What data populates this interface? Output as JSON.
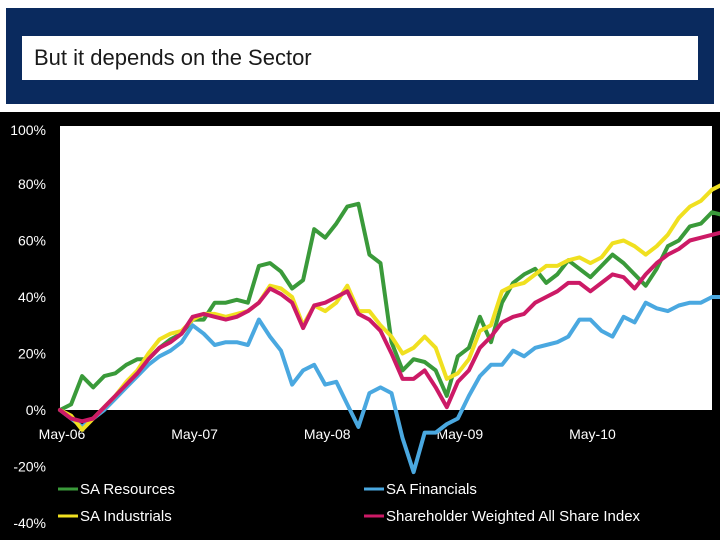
{
  "slide": {
    "title": "But it depends on the Sector"
  },
  "chart_data": {
    "type": "line",
    "title": "",
    "xlabel": "",
    "ylabel": "",
    "x_tick_labels": [
      "May-06",
      "May-07",
      "May-08",
      "May-09",
      "May-10"
    ],
    "x_tick_positions": [
      0,
      12,
      24,
      36,
      48
    ],
    "y_ticks": [
      100,
      80,
      60,
      40,
      20,
      0,
      -20,
      -40
    ],
    "y_tick_labels": [
      "100%",
      "80%",
      "60%",
      "40%",
      "20%",
      "0%",
      "-20%",
      "-40%"
    ],
    "ylim": [
      -40,
      100
    ],
    "x_range": [
      0,
      59
    ],
    "grid": false,
    "legend_position": "bottom",
    "background": "#000000",
    "plot_background": "#ffffff",
    "series": [
      {
        "name": "SA Resources",
        "color": "#3a9a3a",
        "values": [
          0,
          2,
          12,
          8,
          12,
          13,
          16,
          18,
          18,
          22,
          25,
          27,
          32,
          32,
          38,
          38,
          39,
          38,
          51,
          52,
          49,
          43,
          46,
          64,
          61,
          66,
          72,
          73,
          55,
          52,
          24,
          14,
          18,
          17,
          14,
          5,
          19,
          22,
          33,
          24,
          38,
          45,
          48,
          50,
          45,
          48,
          53,
          50,
          47,
          51,
          55,
          52,
          48,
          44,
          50,
          58,
          60,
          65,
          66,
          70,
          69
        ]
      },
      {
        "name": "SA Financials",
        "color": "#4aa8e0",
        "values": [
          0,
          -3,
          -6,
          -3,
          0,
          4,
          8,
          12,
          16,
          19,
          21,
          24,
          30,
          27,
          23,
          24,
          24,
          23,
          32,
          26,
          21,
          9,
          14,
          16,
          9,
          10,
          2,
          -6,
          6,
          8,
          6,
          -10,
          -22,
          -8,
          -8,
          -5,
          -3,
          5,
          12,
          16,
          16,
          21,
          19,
          22,
          23,
          24,
          26,
          32,
          32,
          28,
          26,
          33,
          31,
          38,
          36,
          35,
          37,
          38,
          38,
          40,
          40
        ]
      },
      {
        "name": "SA Industrials",
        "color": "#f0e020",
        "values": [
          0,
          -2,
          -7,
          -3,
          1,
          5,
          10,
          14,
          20,
          25,
          27,
          28,
          32,
          34,
          34,
          33,
          34,
          35,
          38,
          44,
          43,
          40,
          30,
          37,
          35,
          38,
          44,
          35,
          35,
          30,
          26,
          20,
          22,
          26,
          22,
          11,
          13,
          18,
          28,
          30,
          42,
          44,
          45,
          48,
          51,
          51,
          53,
          54,
          52,
          54,
          59,
          60,
          58,
          55,
          58,
          62,
          68,
          72,
          74,
          78,
          80
        ]
      },
      {
        "name": "Shareholder Weighted All Share Index",
        "color": "#cc1a66",
        "values": [
          0,
          -3,
          -4,
          -3,
          1,
          5,
          9,
          13,
          18,
          22,
          24,
          27,
          33,
          34,
          33,
          32,
          33,
          35,
          38,
          43,
          41,
          38,
          29,
          37,
          38,
          40,
          42,
          34,
          32,
          28,
          20,
          11,
          11,
          14,
          8,
          1,
          10,
          14,
          22,
          26,
          31,
          33,
          34,
          38,
          40,
          42,
          45,
          45,
          42,
          45,
          48,
          47,
          43,
          48,
          52,
          55,
          57,
          60,
          61,
          62,
          63
        ]
      }
    ]
  }
}
